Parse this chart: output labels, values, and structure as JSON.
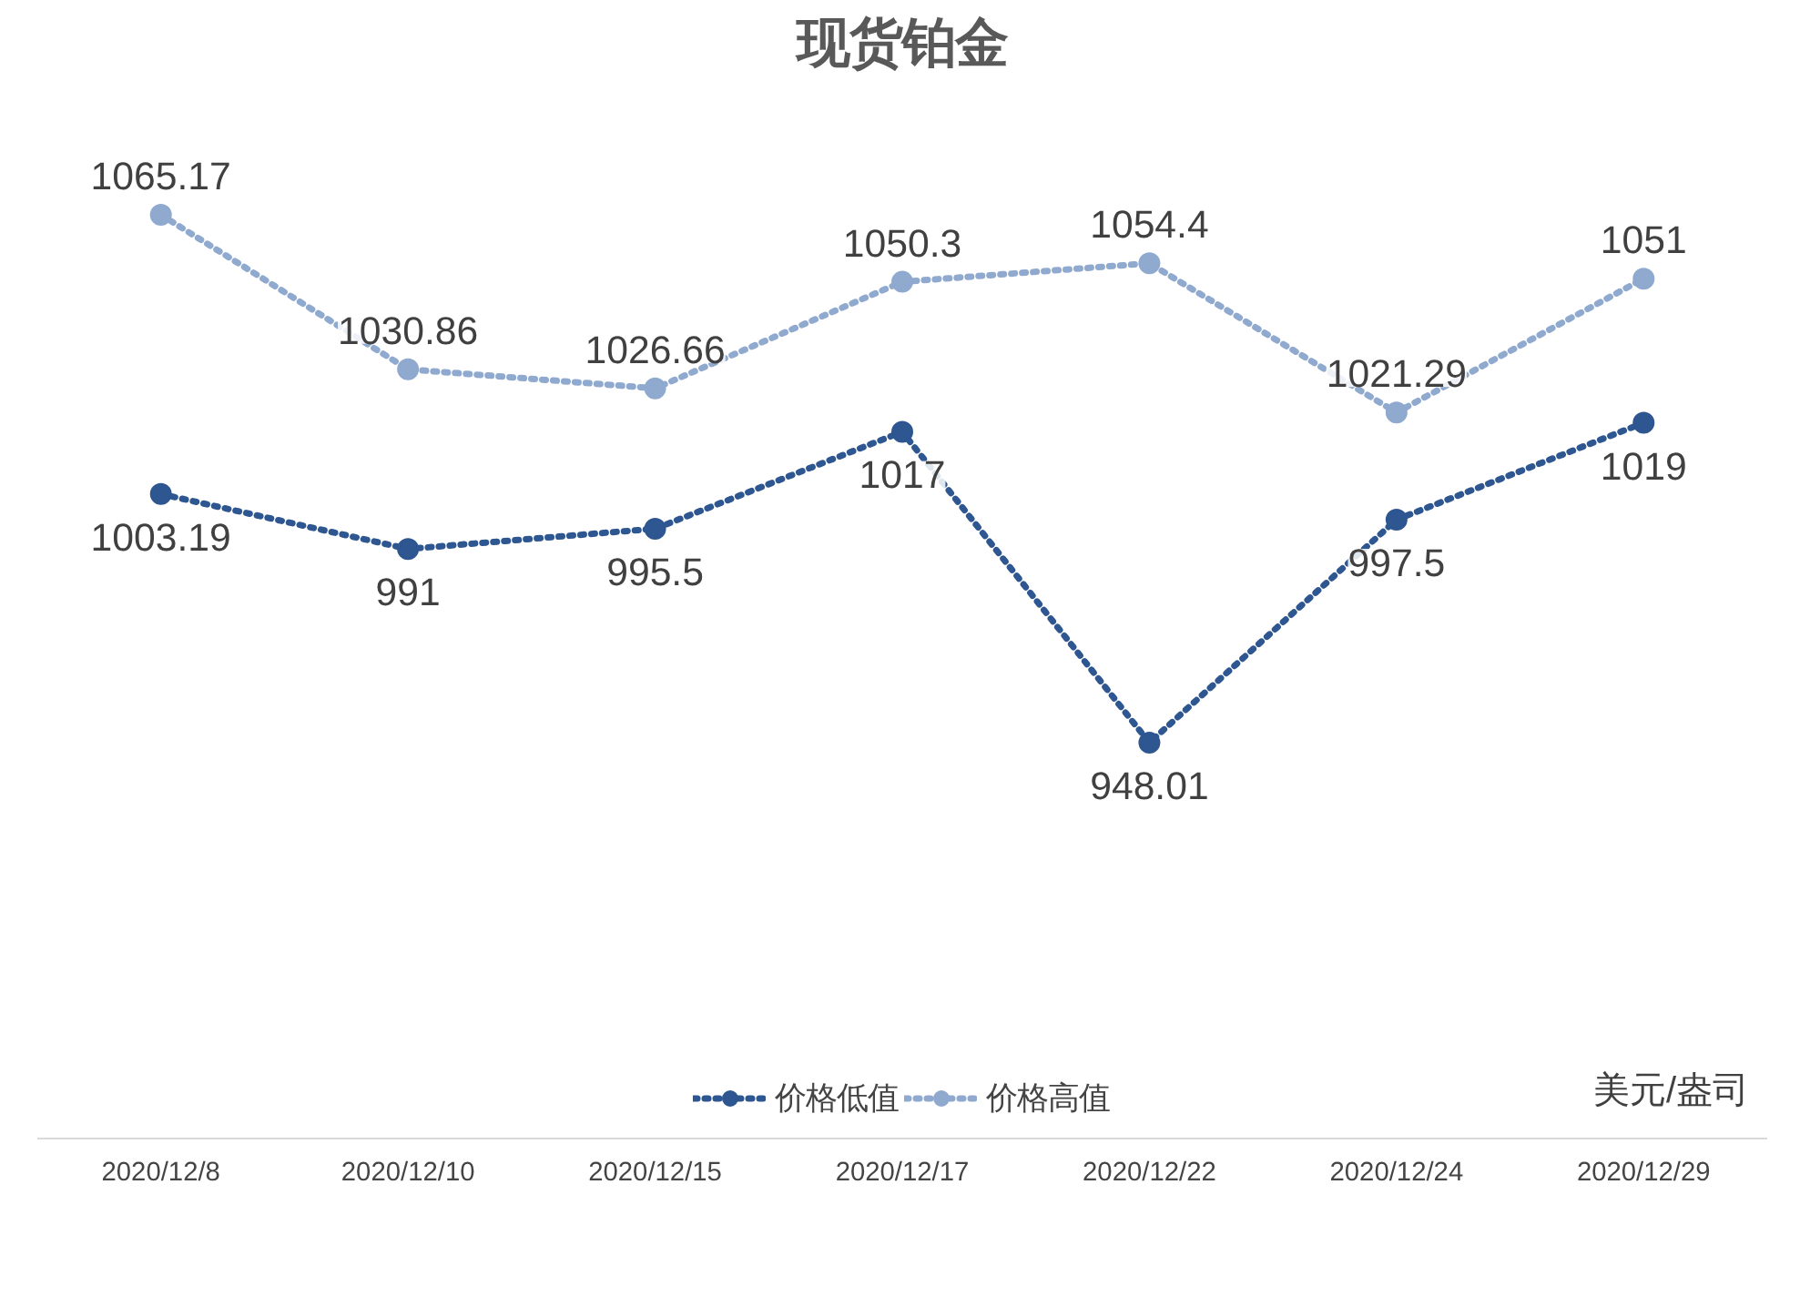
{
  "chart_data": {
    "type": "line",
    "title": "现货铂金",
    "categories": [
      "2020/12/8",
      "2020/12/10",
      "2020/12/15",
      "2020/12/17",
      "2020/12/22",
      "2020/12/24",
      "2020/12/29"
    ],
    "series": [
      {
        "name": "价格低值",
        "color": "#2e5690",
        "values": [
          1003.19,
          991,
          995.5,
          1017,
          948.01,
          997.5,
          1019
        ]
      },
      {
        "name": "价格高值",
        "color": "#8fa9cf",
        "values": [
          1065.17,
          1030.86,
          1026.66,
          1050.3,
          1054.4,
          1021.29,
          1051
        ]
      }
    ],
    "annotations": [
      "美元/盎司"
    ],
    "data_labels": true,
    "legend": "bottom",
    "grid": false,
    "marker": "circle",
    "line_style": "dotted"
  }
}
